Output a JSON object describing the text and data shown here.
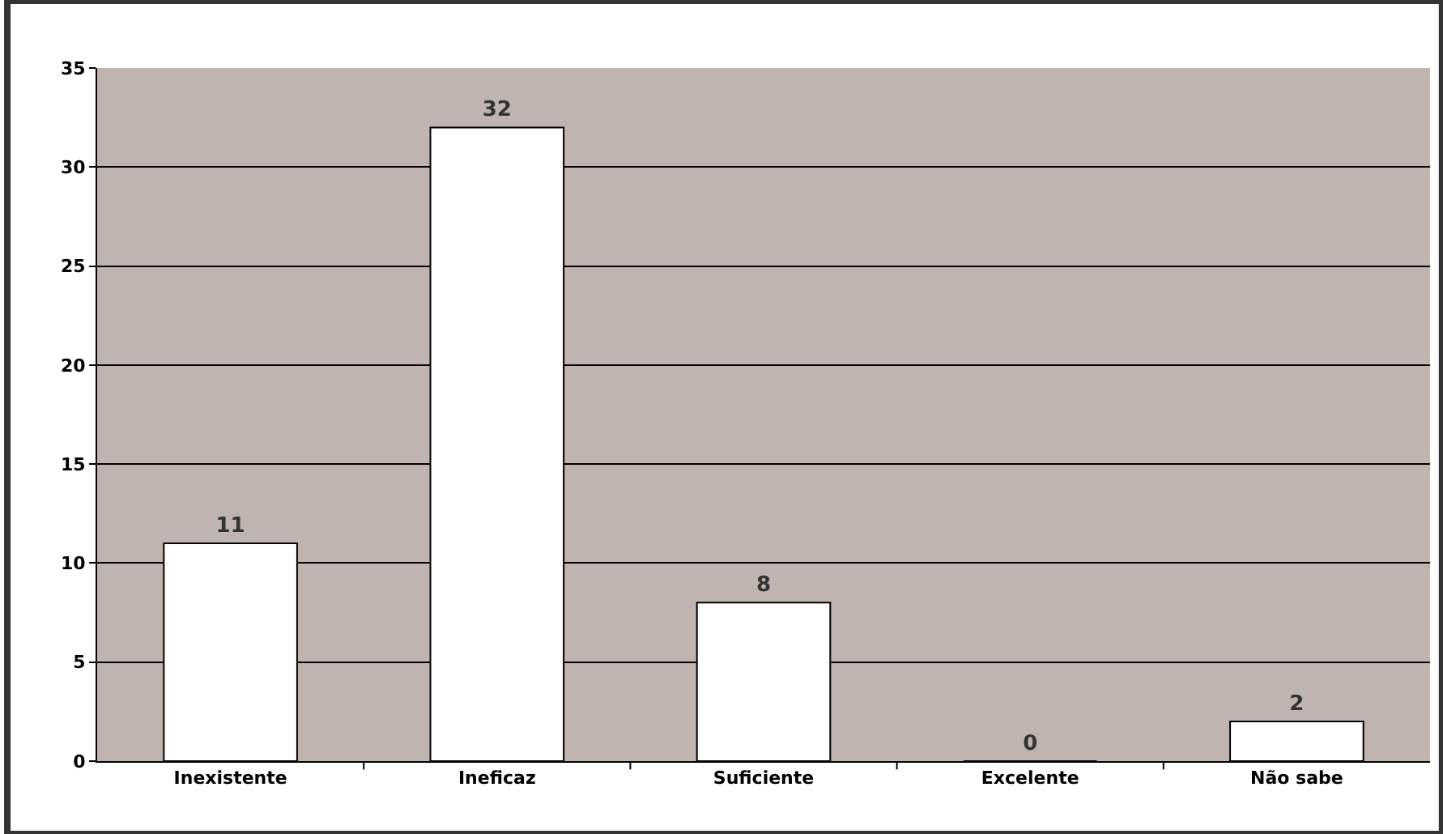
{
  "chart_data": {
    "type": "bar",
    "categories": [
      "Inexistente",
      "Ineficaz",
      "Suficiente",
      "Excelente",
      "Não sabe"
    ],
    "values": [
      11,
      32,
      8,
      0,
      2
    ],
    "color": "#ffffff",
    "ylim": [
      0,
      35
    ],
    "yticks": [
      0,
      5,
      10,
      15,
      20,
      25,
      30,
      35
    ],
    "grid": "y",
    "data_labels": true,
    "legend": false
  }
}
